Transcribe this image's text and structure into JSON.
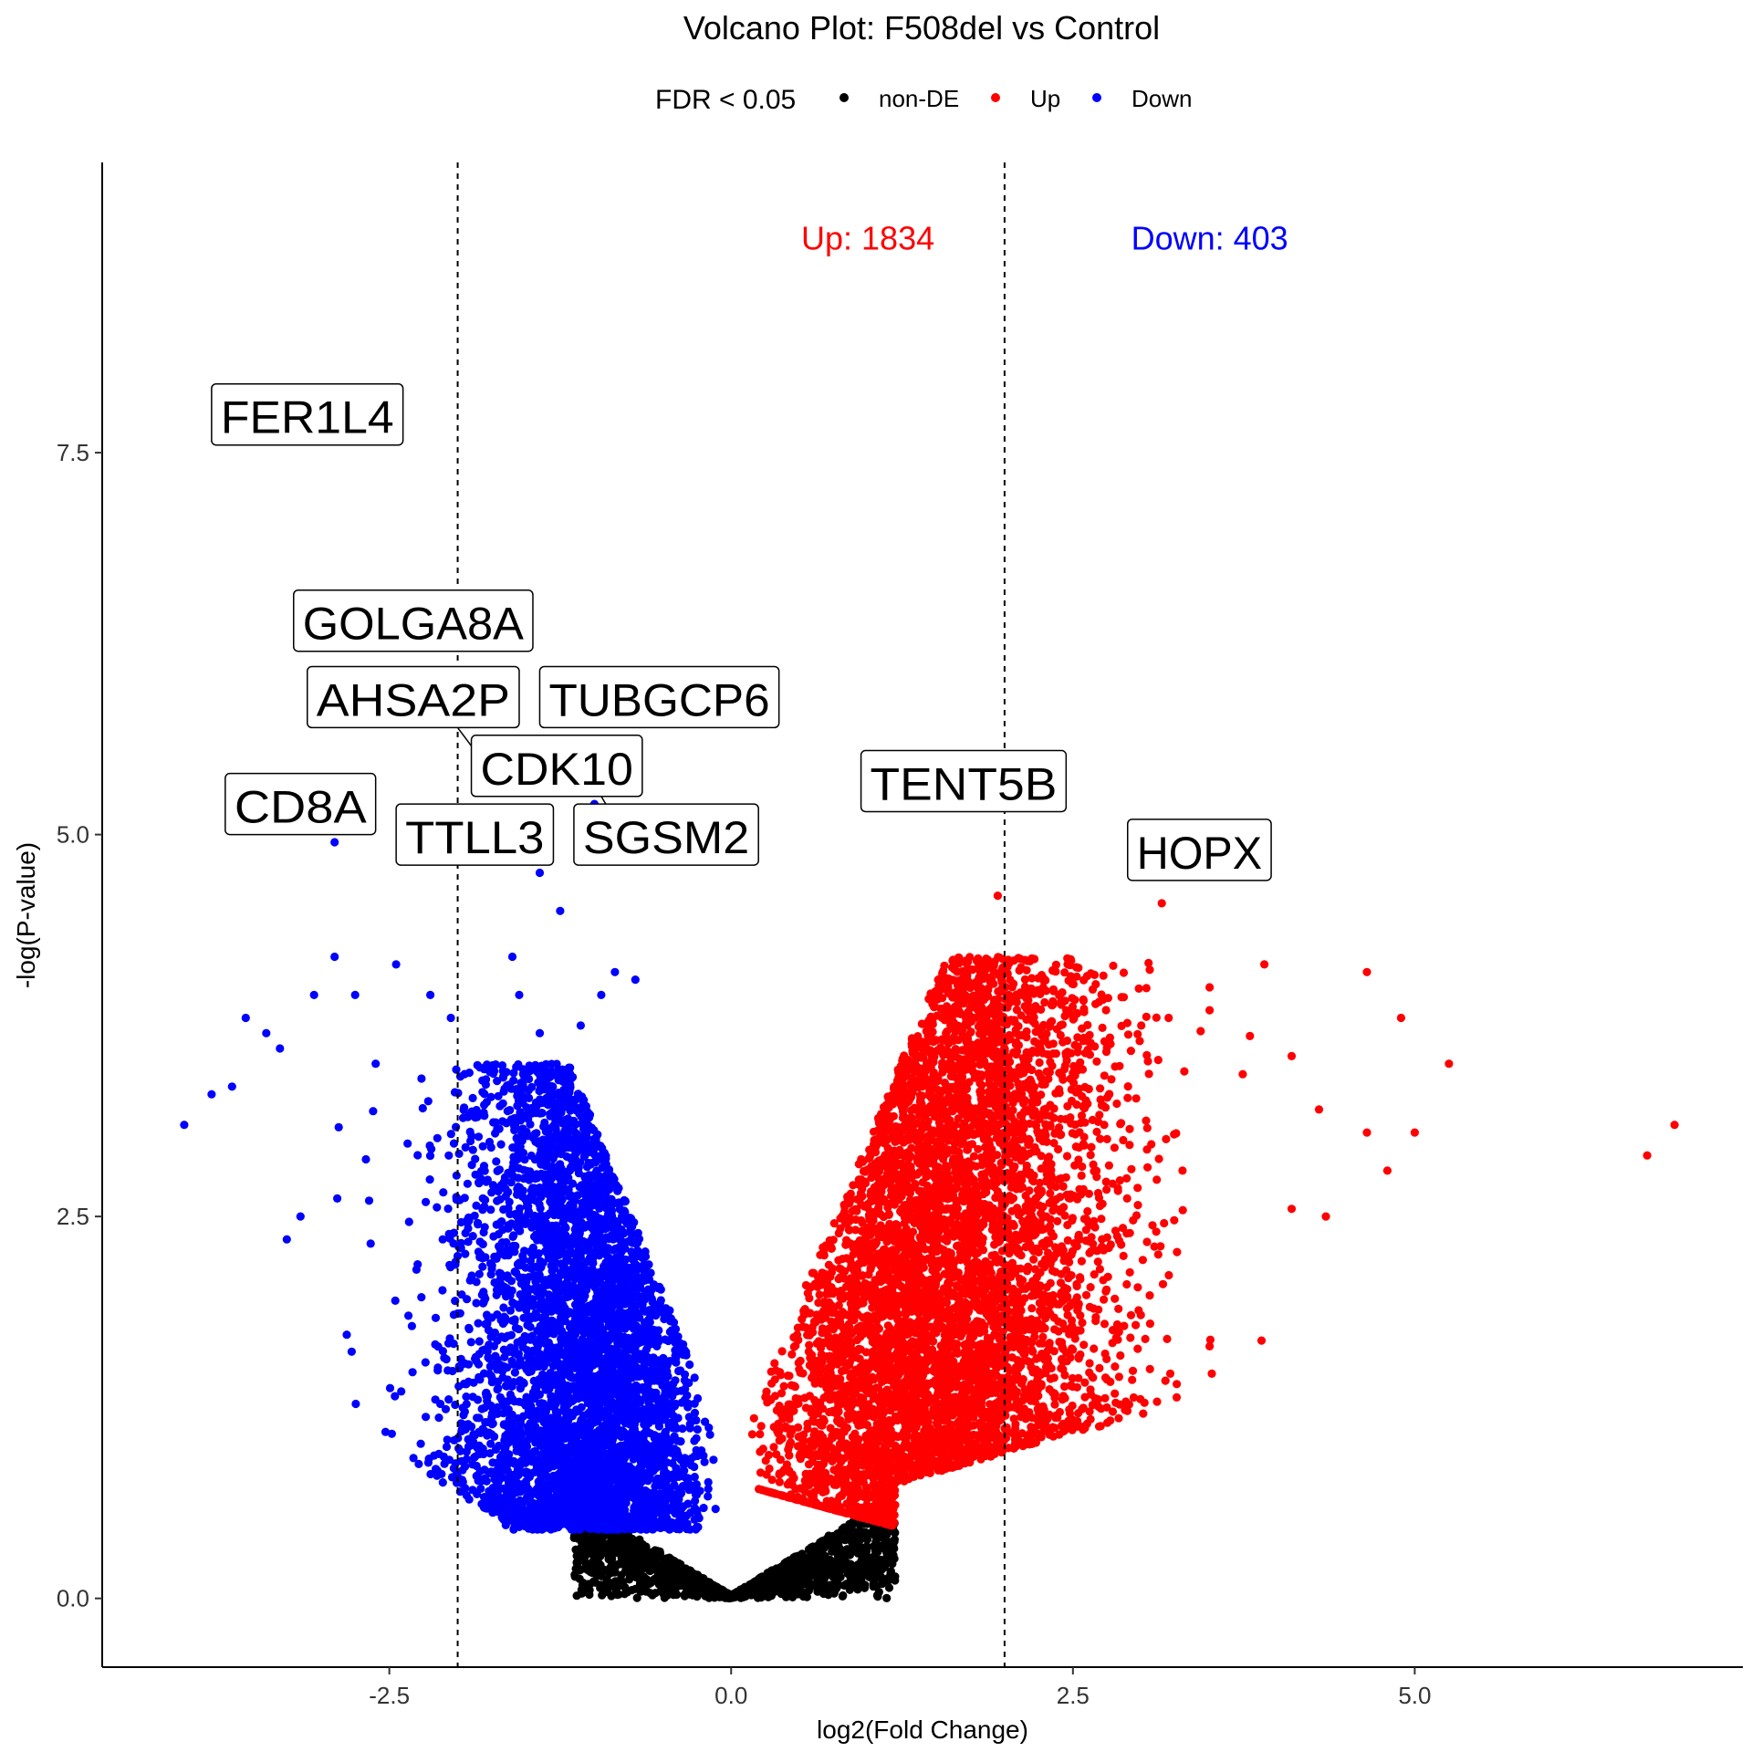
{
  "chart_data": {
    "type": "scatter",
    "title": "Volcano Plot: F508del vs Control",
    "xlabel": "log2(Fold Change)",
    "ylabel": "-log(P-value)",
    "xlim": [
      -4.6,
      7.4
    ],
    "ylim": [
      -0.45,
      9.4
    ],
    "x_ticks": [
      -2.5,
      0.0,
      2.5,
      5.0
    ],
    "x_tick_labels": [
      "-2.5",
      "0.0",
      "2.5",
      "5.0"
    ],
    "y_ticks": [
      0.0,
      2.5,
      5.0,
      7.5
    ],
    "y_tick_labels": [
      "0.0",
      "2.5",
      "5.0",
      "7.5"
    ],
    "grid": false,
    "legend": {
      "title": "FDR < 0.05",
      "placement": "top",
      "entries": [
        {
          "label": "non-DE",
          "color": "#000000"
        },
        {
          "label": "Up",
          "color": "#ff0000"
        },
        {
          "label": "Down",
          "color": "#0000ff"
        }
      ]
    },
    "vlines": [
      -2,
      2
    ],
    "counts": [
      {
        "text": "Up: 1834",
        "x": 1.0,
        "y": 8.9,
        "color": "#ff0000"
      },
      {
        "text": "Down: 403",
        "x": 3.5,
        "y": 8.9,
        "color": "#0000ff"
      }
    ],
    "colors": {
      "nonDE": "#000000",
      "up": "#ff0000",
      "down": "#0000ff"
    },
    "series": [
      {
        "name": "non-DE",
        "color": "#000000",
        "region": {
          "x": [
            -1.15,
            1.2
          ],
          "y": [
            0.0,
            0.5
          ],
          "count": 1600
        }
      },
      {
        "name": "Up",
        "color": "#ff0000",
        "region": {
          "x": [
            0.05,
            4.4
          ],
          "y": [
            0.45,
            4.4
          ],
          "count": 7000
        }
      },
      {
        "name": "Down",
        "color": "#0000ff",
        "region": {
          "x": [
            -4.0,
            -0.08
          ],
          "y": [
            0.45,
            4.2
          ],
          "count": 4500
        }
      }
    ],
    "outliers_up": [
      [
        6.9,
        3.1
      ],
      [
        6.7,
        2.9
      ],
      [
        5.25,
        3.5
      ],
      [
        5.0,
        3.05
      ],
      [
        4.9,
        3.8
      ],
      [
        4.8,
        2.8
      ],
      [
        4.65,
        4.1
      ],
      [
        4.65,
        3.05
      ],
      [
        4.35,
        2.5
      ],
      [
        4.3,
        3.2
      ],
      [
        4.1,
        3.55
      ],
      [
        4.1,
        2.55
      ],
      [
        3.9,
        4.15
      ],
      [
        3.5,
        4.0
      ],
      [
        3.5,
        3.85
      ],
      [
        3.2,
        3.8
      ],
      [
        3.0,
        3.75
      ],
      [
        3.5,
        1.65
      ]
    ],
    "outliers_down": [
      [
        -4.0,
        3.1
      ],
      [
        -3.8,
        3.3
      ],
      [
        -3.65,
        3.35
      ],
      [
        -3.55,
        3.8
      ],
      [
        -3.4,
        3.7
      ],
      [
        -3.3,
        3.6
      ],
      [
        -3.25,
        2.35
      ],
      [
        -3.15,
        2.5
      ],
      [
        -3.05,
        3.95
      ],
      [
        -2.9,
        4.2
      ],
      [
        -2.75,
        3.95
      ],
      [
        -2.6,
        3.5
      ],
      [
        -2.45,
        4.15
      ],
      [
        -2.2,
        3.95
      ],
      [
        -2.05,
        3.8
      ],
      [
        -1.6,
        4.2
      ],
      [
        -1.55,
        3.95
      ],
      [
        -1.4,
        3.7
      ],
      [
        -1.1,
        3.75
      ],
      [
        -0.95,
        3.95
      ],
      [
        -0.85,
        4.1
      ],
      [
        -0.7,
        4.05
      ]
    ],
    "labeled_genes": [
      {
        "gene": "FER1L4",
        "x": -2.8,
        "y": 7.6,
        "color": "#0000ff"
      },
      {
        "gene": "GOLGA8A",
        "x": -2.0,
        "y": 5.8,
        "color": "#0000ff"
      },
      {
        "gene": "AHSA2P",
        "x": -1.0,
        "y": 5.2,
        "color": "#0000ff"
      },
      {
        "gene": "TUBGCP6",
        "x": -1.1,
        "y": 5.15,
        "color": "#0000ff"
      },
      {
        "gene": "CDK10",
        "x": -1.75,
        "y": 5.05,
        "color": "#0000ff"
      },
      {
        "gene": "CD8A",
        "x": -2.9,
        "y": 4.95,
        "color": "#0000ff"
      },
      {
        "gene": "TTLL3",
        "x": -1.4,
        "y": 4.75,
        "color": "#0000ff"
      },
      {
        "gene": "SGSM2",
        "x": -1.25,
        "y": 4.5,
        "color": "#0000ff"
      },
      {
        "gene": "TENT5B",
        "x": 1.95,
        "y": 4.6,
        "color": "#ff0000"
      },
      {
        "gene": "HOPX",
        "x": 3.15,
        "y": 4.55,
        "color": "#ff0000"
      }
    ],
    "labels": [
      {
        "gene": "FER1L4",
        "box": [
          -3.8,
          -2.4,
          7.55,
          7.95
        ]
      },
      {
        "gene": "GOLGA8A",
        "box": [
          -3.2,
          -1.45,
          6.2,
          6.6
        ]
      },
      {
        "gene": "AHSA2P",
        "box": [
          -3.1,
          -1.55,
          5.7,
          6.1
        ]
      },
      {
        "gene": "TUBGCP6",
        "box": [
          -1.4,
          0.35,
          5.7,
          6.1
        ]
      },
      {
        "gene": "CDK10",
        "box": [
          -1.9,
          -0.65,
          5.25,
          5.65
        ]
      },
      {
        "gene": "CD8A",
        "box": [
          -3.7,
          -2.6,
          5.0,
          5.4
        ]
      },
      {
        "gene": "TTLL3",
        "box": [
          -2.45,
          -1.3,
          4.8,
          5.2
        ]
      },
      {
        "gene": "SGSM2",
        "box": [
          -1.15,
          0.2,
          4.8,
          5.2
        ]
      },
      {
        "gene": "TENT5B",
        "box": [
          0.95,
          2.45,
          5.15,
          5.55
        ]
      },
      {
        "gene": "HOPX",
        "box": [
          2.9,
          3.95,
          4.7,
          5.1
        ]
      }
    ],
    "connectors": [
      {
        "from": [
          -2.0,
          5.7
        ],
        "to": [
          -1.75,
          5.4
        ]
      },
      {
        "from": [
          -1.45,
          4.95
        ],
        "to": [
          -1.75,
          5.2
        ]
      },
      {
        "from": [
          -0.95,
          5.25
        ],
        "to": [
          -0.75,
          4.95
        ]
      }
    ]
  }
}
